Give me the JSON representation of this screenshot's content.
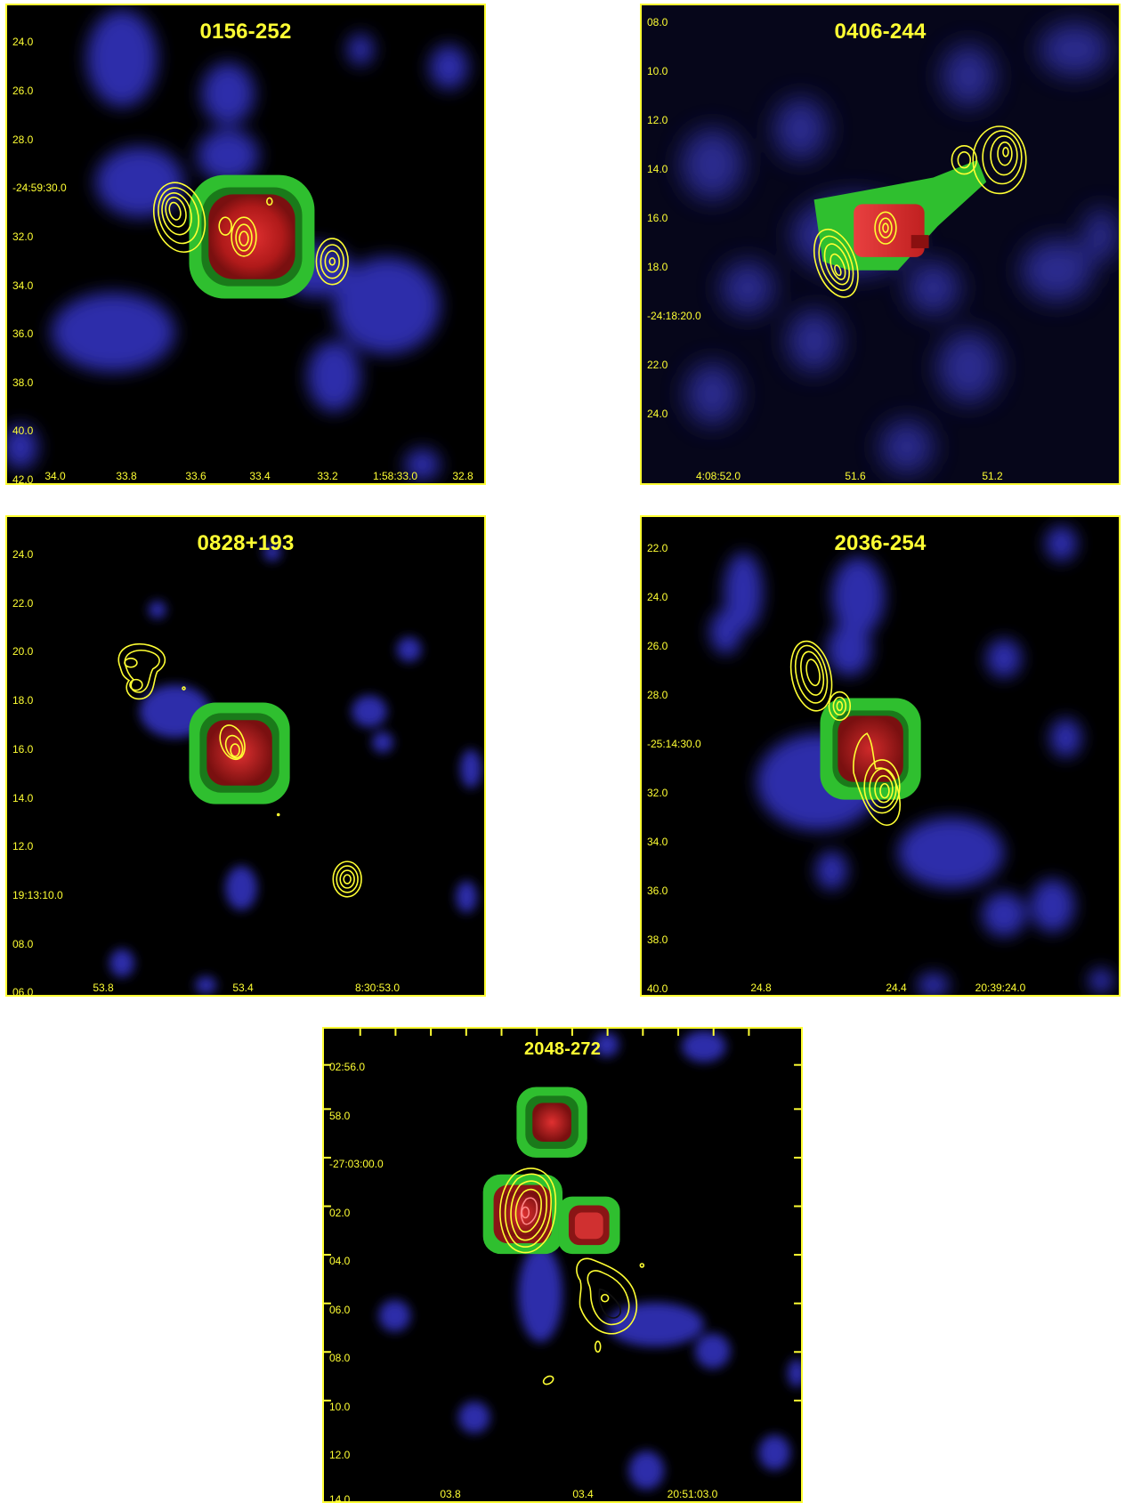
{
  "panels": [
    {
      "id": "0156",
      "title": "0156-252",
      "y_ticks": [
        "24.0",
        "26.0",
        "28.0",
        "-24:59:30.0",
        "32.0",
        "34.0",
        "36.0",
        "38.0",
        "40.0",
        "42.0"
      ],
      "x_ticks": [
        "34.0",
        "33.8",
        "33.6",
        "33.4",
        "33.2",
        "1:58:33.0",
        "32.8"
      ]
    },
    {
      "id": "0406",
      "title": "0406-244",
      "y_ticks": [
        "08.0",
        "10.0",
        "12.0",
        "14.0",
        "16.0",
        "18.0",
        "-24:18:20.0",
        "22.0",
        "24.0"
      ],
      "x_ticks": [
        "4:08:52.0",
        "51.6",
        "51.2"
      ]
    },
    {
      "id": "0828",
      "title": "0828+193",
      "y_ticks": [
        "24.0",
        "22.0",
        "20.0",
        "18.0",
        "16.0",
        "14.0",
        "12.0",
        "19:13:10.0",
        "08.0",
        "06.0"
      ],
      "x_ticks": [
        "53.8",
        "53.4",
        "8:30:53.0"
      ]
    },
    {
      "id": "2036",
      "title": "2036-254",
      "y_ticks": [
        "22.0",
        "24.0",
        "26.0",
        "28.0",
        "-25:14:30.0",
        "32.0",
        "34.0",
        "36.0",
        "38.0",
        "40.0"
      ],
      "x_ticks": [
        "24.8",
        "24.4",
        "20:39:24.0"
      ]
    },
    {
      "id": "2048",
      "title": "2048-272",
      "y_ticks": [
        "02:56.0",
        "58.0",
        "-27:03:00.0",
        "02.0",
        "04.0",
        "06.0",
        "08.0",
        "10.0",
        "12.0",
        "14.0"
      ],
      "x_ticks": [
        "03.8",
        "03.4",
        "20:51:03.0"
      ]
    }
  ],
  "colors": {
    "frame": "#ffff33",
    "background": "#000000",
    "blue_emission": "#3a3ad8",
    "green_ring": "#33cc33",
    "red_core": "#cc2222",
    "contour": "#ffff33"
  }
}
